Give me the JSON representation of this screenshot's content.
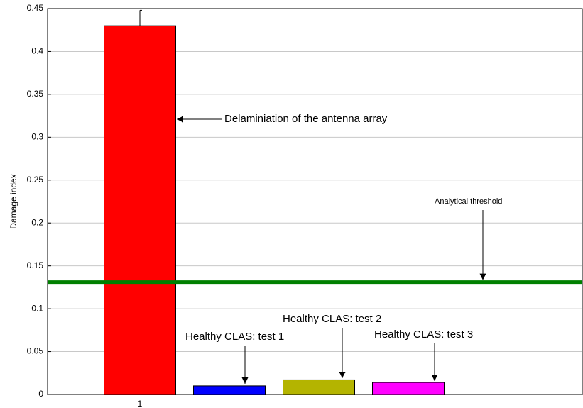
{
  "chart_data": {
    "type": "bar",
    "y_label": "Damage index",
    "categories": [
      "1",
      null,
      null,
      null
    ],
    "values": [
      0.43,
      0.01,
      0.017,
      0.014
    ],
    "errors": [
      0.018,
      null,
      null,
      null
    ],
    "colors": [
      "#ff0000",
      "#0000ff",
      "#b4b400",
      "#ff00ff"
    ],
    "ylim": [
      0,
      0.45
    ],
    "yticks": [
      0,
      0.05,
      0.1,
      0.15,
      0.2,
      0.25,
      0.3,
      0.35,
      0.4,
      0.45
    ],
    "grid": true,
    "threshold": {
      "name": "Analytical threshold",
      "value": 0.131,
      "color": "#008000"
    },
    "annotations": [
      "Delaminiation of the antenna array",
      "Healthy CLAS: test 1",
      "Healthy CLAS: test 2",
      "Healthy CLAS: test 3"
    ]
  }
}
